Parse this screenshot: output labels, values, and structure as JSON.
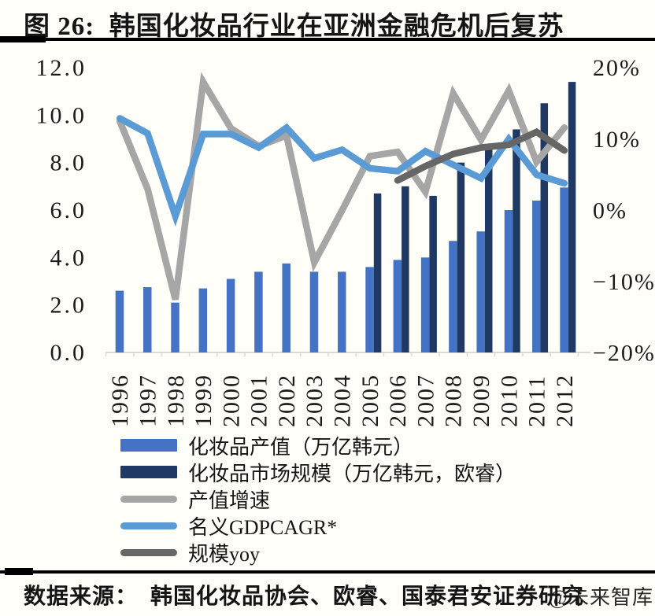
{
  "title": "图 26:  韩国化妆品行业在亚洲金融危机后复苏",
  "source": {
    "label": "数据来源：  韩国化妆品协会、欧睿、国泰君安证券研究",
    "watermark": "@未来智库"
  },
  "colors": {
    "bar_light_blue": "#4472C4",
    "bar_dark_navy": "#1F3864",
    "line_gray": "#A6A6A6",
    "line_light_blue": "#5B9BD5",
    "line_dark_gray": "#666666",
    "axis_line": "#D9D9D9",
    "rule_black": "#000000"
  },
  "chart_data": {
    "type": "combo_bar_line",
    "title": "",
    "grid": false,
    "legend_position": "bottom_left",
    "categories": [
      "1996",
      "1997",
      "1998",
      "1999",
      "2000",
      "2001",
      "2002",
      "2003",
      "2004",
      "2005",
      "2006",
      "2007",
      "2008",
      "2009",
      "2010",
      "2011",
      "2012"
    ],
    "left_axis": {
      "labels": [
        "12.0",
        "10.0",
        "8.0",
        "6.0",
        "4.0",
        "2.0",
        "0.0"
      ],
      "values": [
        12,
        10,
        8,
        6,
        4,
        2,
        0
      ],
      "min": 0,
      "max": 12
    },
    "right_axis": {
      "labels": [
        "20%",
        "10%",
        "0%",
        "−10%",
        "−20%"
      ],
      "values": [
        20,
        10,
        0,
        -10,
        -20
      ],
      "min": -20,
      "max": 20
    },
    "series": [
      {
        "id": "cosmetics-output-value",
        "name": "化妆品产值（万亿韩元）",
        "type": "bar",
        "axis": "left",
        "color": "#4472C4",
        "values": [
          2.6,
          2.75,
          2.1,
          2.7,
          3.1,
          3.4,
          3.75,
          3.4,
          3.4,
          3.6,
          3.9,
          4.0,
          4.7,
          5.1,
          6.0,
          6.4,
          6.95
        ]
      },
      {
        "id": "cosmetics-market-size",
        "name": "化妆品市场规模（万亿韩元，欧睿）",
        "type": "bar",
        "axis": "left",
        "color": "#1F3864",
        "values": [
          null,
          null,
          null,
          null,
          null,
          null,
          null,
          null,
          null,
          6.7,
          7.0,
          6.6,
          8.0,
          8.7,
          9.4,
          10.5,
          11.4
        ]
      },
      {
        "id": "output-growth-rate",
        "name": "产值增速",
        "type": "line",
        "axis": "right",
        "color": "#A6A6A6",
        "values": [
          12.5,
          3.0,
          -12.5,
          18.0,
          11.5,
          9.0,
          10.5,
          -7.3,
          0.0,
          7.6,
          8.2,
          2.6,
          16.4,
          9.9,
          16.8,
          6.8,
          11.6
        ]
      },
      {
        "id": "nominal-gdp-cagr",
        "name": "名义GDPCAGR*",
        "type": "line",
        "axis": "right",
        "color": "#5B9BD5",
        "values": [
          12.9,
          10.8,
          -0.8,
          10.7,
          10.7,
          8.8,
          11.6,
          7.3,
          8.5,
          5.9,
          5.5,
          8.3,
          6.4,
          4.5,
          10.0,
          5.0,
          3.8
        ]
      },
      {
        "id": "market-size-yoy",
        "name": "规模yoy",
        "type": "line",
        "axis": "right",
        "color": "#666666",
        "values": [
          null,
          null,
          null,
          null,
          null,
          null,
          null,
          null,
          null,
          null,
          4.2,
          6.2,
          7.9,
          8.8,
          9.2,
          11.0,
          8.4
        ]
      }
    ]
  }
}
